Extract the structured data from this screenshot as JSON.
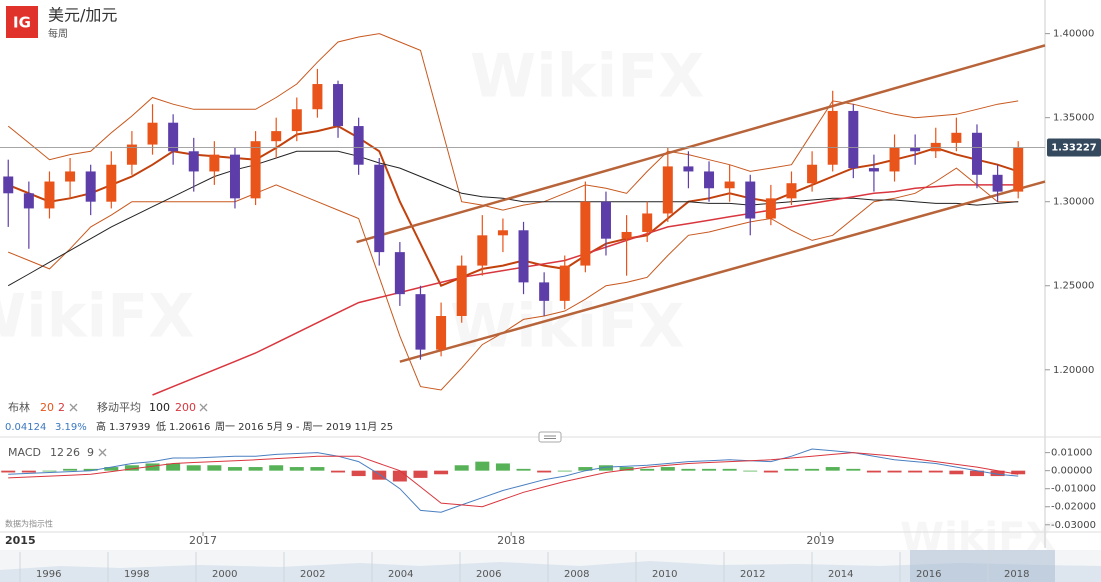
{
  "header": {
    "logo": "IG",
    "title": "美元/加元",
    "period": "每周"
  },
  "watermark": "WikiFX",
  "legend": {
    "bollinger": {
      "name": "布林",
      "period": 20,
      "stddev": 2
    },
    "moving_average": {
      "name": "移动平均",
      "fast": 100,
      "slow": 200
    },
    "stats": {
      "change": 0.04124,
      "change_pct": "3.19%",
      "high_label": "高",
      "high": 1.37939,
      "low_label": "低",
      "low": 1.20616,
      "range": "周一 2016 5月 9 - 周一 2019 11月 25"
    },
    "macd": {
      "name": "MACD",
      "fast": 12,
      "slow": 26,
      "signal": 9
    }
  },
  "note": "数据为指示性",
  "start_label": "2015",
  "navigator_years": [
    "1996",
    "1998",
    "2000",
    "2002",
    "2004",
    "2006",
    "2008",
    "2010",
    "2012",
    "2014",
    "2016",
    "2018"
  ],
  "chart_data": [
    {
      "type": "candlestick",
      "categories": [
        null,
        null,
        null,
        null,
        null,
        null,
        null,
        null,
        null,
        null,
        null,
        null,
        null,
        null,
        null,
        null,
        null,
        null,
        null,
        null,
        null,
        null,
        null,
        null,
        null,
        null,
        null,
        null,
        null,
        null,
        null,
        null,
        null,
        null,
        null,
        null,
        null,
        null,
        null,
        null,
        null,
        null,
        null,
        null,
        null,
        null,
        null,
        null,
        null,
        null
      ],
      "open": [
        1.315,
        1.305,
        1.296,
        1.312,
        1.318,
        1.3,
        1.322,
        1.334,
        1.347,
        1.33,
        1.318,
        1.328,
        1.302,
        1.336,
        1.342,
        1.355,
        1.37,
        1.345,
        1.322,
        1.27,
        1.245,
        1.212,
        1.232,
        1.262,
        1.28,
        1.283,
        1.252,
        1.241,
        1.262,
        1.3,
        1.278,
        1.282,
        1.293,
        1.321,
        1.318,
        1.308,
        1.312,
        1.29,
        1.302,
        1.311,
        1.322,
        1.354,
        1.32,
        1.318,
        1.332,
        1.33,
        1.335,
        1.341,
        1.316,
        1.306
      ],
      "high": [
        1.325,
        1.312,
        1.318,
        1.326,
        1.322,
        1.33,
        1.342,
        1.358,
        1.352,
        1.338,
        1.336,
        1.332,
        1.342,
        1.35,
        1.362,
        1.379,
        1.372,
        1.35,
        1.326,
        1.276,
        1.25,
        1.24,
        1.268,
        1.292,
        1.29,
        1.288,
        1.258,
        1.268,
        1.312,
        1.306,
        1.292,
        1.3,
        1.332,
        1.33,
        1.324,
        1.322,
        1.316,
        1.31,
        1.318,
        1.33,
        1.366,
        1.358,
        1.328,
        1.34,
        1.34,
        1.344,
        1.35,
        1.346,
        1.322,
        1.336
      ],
      "low": [
        1.285,
        1.272,
        1.29,
        1.302,
        1.292,
        1.296,
        1.316,
        1.328,
        1.322,
        1.306,
        1.31,
        1.296,
        1.298,
        1.326,
        1.336,
        1.35,
        1.338,
        1.316,
        1.262,
        1.238,
        1.206,
        1.208,
        1.228,
        1.256,
        1.27,
        1.245,
        1.232,
        1.236,
        1.258,
        1.268,
        1.256,
        1.276,
        1.288,
        1.308,
        1.3,
        1.3,
        1.28,
        1.286,
        1.298,
        1.306,
        1.318,
        1.314,
        1.306,
        1.312,
        1.322,
        1.326,
        1.33,
        1.308,
        1.3,
        1.302
      ],
      "close": [
        1.305,
        1.296,
        1.312,
        1.318,
        1.3,
        1.322,
        1.334,
        1.347,
        1.33,
        1.318,
        1.328,
        1.302,
        1.336,
        1.342,
        1.355,
        1.37,
        1.345,
        1.322,
        1.27,
        1.245,
        1.212,
        1.232,
        1.262,
        1.28,
        1.283,
        1.252,
        1.241,
        1.262,
        1.3,
        1.278,
        1.282,
        1.293,
        1.321,
        1.318,
        1.308,
        1.312,
        1.29,
        1.302,
        1.311,
        1.322,
        1.354,
        1.32,
        1.318,
        1.332,
        1.33,
        1.335,
        1.341,
        1.316,
        1.306,
        1.332
      ],
      "up_color": "#e8541a",
      "down_color": "#5d3ea8",
      "lines": [
        {
          "color": "#c8581e",
          "width": 1,
          "values": [
            1.345,
            1.335,
            1.325,
            1.328,
            1.33,
            1.341,
            1.351,
            1.362,
            1.358,
            1.355,
            1.355,
            1.355,
            1.355,
            1.362,
            1.37,
            1.383,
            1.395,
            1.398,
            1.4,
            1.395,
            1.39,
            1.345,
            1.3,
            1.298,
            1.295,
            1.298,
            1.3,
            1.305,
            1.31,
            1.308,
            1.305,
            1.318,
            1.33,
            1.328,
            1.325,
            1.322,
            1.318,
            1.32,
            1.322,
            1.341,
            1.36,
            1.358,
            1.355,
            1.352,
            1.35,
            1.351,
            1.352,
            1.355,
            1.358,
            1.36
          ]
        },
        {
          "color": "#c8581e",
          "width": 1,
          "values": [
            1.27,
            1.265,
            1.26,
            1.272,
            1.285,
            1.292,
            1.3,
            1.3,
            1.3,
            1.3,
            1.3,
            1.3,
            1.305,
            1.31,
            1.305,
            1.3,
            1.295,
            1.29,
            1.255,
            1.22,
            1.19,
            1.188,
            1.201,
            1.215,
            1.222,
            1.23,
            1.232,
            1.235,
            1.242,
            1.25,
            1.252,
            1.255,
            1.268,
            1.28,
            1.282,
            1.285,
            1.288,
            1.29,
            1.283,
            1.277,
            1.28,
            1.29,
            1.3,
            1.302,
            1.305,
            1.312,
            1.32,
            1.31,
            1.3,
            1.3
          ]
        },
        {
          "color": "#c2410c",
          "width": 2,
          "values": [
            1.31,
            1.305,
            1.3,
            1.302,
            1.305,
            1.31,
            1.315,
            1.322,
            1.33,
            1.328,
            1.327,
            1.326,
            1.325,
            1.332,
            1.34,
            1.342,
            1.345,
            1.338,
            1.33,
            1.3,
            1.275,
            1.25,
            1.255,
            1.26,
            1.262,
            1.265,
            1.262,
            1.26,
            1.268,
            1.275,
            1.278,
            1.28,
            1.29,
            1.3,
            1.302,
            1.305,
            1.302,
            1.3,
            1.305,
            1.31,
            1.315,
            1.32,
            1.322,
            1.325,
            1.328,
            1.332,
            1.328,
            1.325,
            1.322,
            1.318
          ]
        },
        {
          "color": "#222222",
          "width": 1,
          "values": [
            1.25,
            1.257,
            1.264,
            1.271,
            1.278,
            1.285,
            1.291,
            1.297,
            1.303,
            1.309,
            1.315,
            1.319,
            1.322,
            1.326,
            1.33,
            1.33,
            1.33,
            1.327,
            1.323,
            1.32,
            1.315,
            1.31,
            1.305,
            1.303,
            1.302,
            1.3,
            1.3,
            1.3,
            1.3,
            1.3,
            1.3,
            1.3,
            1.3,
            1.3,
            1.299,
            1.299,
            1.298,
            1.299,
            1.3,
            1.301,
            1.302,
            1.302,
            1.301,
            1.301,
            1.3,
            1.299,
            1.299,
            1.298,
            1.299,
            1.3
          ]
        },
        {
          "color": "#d9363e",
          "width": 1.5,
          "values": [
            null,
            null,
            null,
            null,
            null,
            null,
            null,
            1.185,
            1.19,
            1.195,
            1.2,
            1.205,
            1.21,
            1.216,
            1.222,
            1.228,
            1.234,
            1.24,
            1.243,
            1.246,
            1.249,
            1.252,
            1.255,
            1.257,
            1.259,
            1.261,
            1.263,
            1.265,
            1.269,
            1.273,
            1.277,
            1.281,
            1.285,
            1.287,
            1.289,
            1.291,
            1.293,
            1.295,
            1.297,
            1.299,
            1.301,
            1.303,
            1.305,
            1.306,
            1.308,
            1.309,
            1.31,
            1.31,
            1.31,
            1.31
          ]
        }
      ],
      "trendlines": [
        {
          "color": "#b8643a",
          "x": [
            16.9,
            50.3
          ],
          "values": [
            1.276,
            1.393
          ]
        },
        {
          "color": "#b8643a",
          "x": [
            19.0,
            50.3
          ],
          "values": [
            1.2048,
            1.312
          ]
        }
      ],
      "last_price": 1.33227,
      "xlim": [
        -0.4,
        50.3
      ],
      "xticks": [
        {
          "value": 9.45,
          "label": "2017"
        },
        {
          "value": 24.4,
          "label": "2018"
        },
        {
          "value": 39.4,
          "label": "2019"
        }
      ],
      "ylim": [
        1.185,
        1.42
      ],
      "yticks": [
        {
          "value": 1.2,
          "label": "1.20000"
        },
        {
          "value": 1.25,
          "label": "1.25000"
        },
        {
          "value": 1.3,
          "label": "1.30000"
        },
        {
          "value": 1.35,
          "label": "1.35000"
        },
        {
          "value": 1.4,
          "label": "1.40000"
        }
      ]
    },
    {
      "type": "macd",
      "values": [
        -0.001,
        -0.001,
        0.0,
        0.001,
        0.001,
        0.002,
        0.003,
        0.004,
        0.004,
        0.003,
        0.003,
        0.002,
        0.002,
        0.003,
        0.002,
        0.002,
        -0.001,
        -0.003,
        -0.005,
        -0.006,
        -0.004,
        -0.002,
        0.003,
        0.005,
        0.004,
        0.001,
        -0.001,
        0.0,
        0.002,
        0.003,
        0.002,
        0.001,
        0.002,
        0.001,
        0.001,
        0.001,
        0.0,
        -0.001,
        0.001,
        0.001,
        0.002,
        0.001,
        -0.001,
        -0.001,
        -0.001,
        -0.001,
        -0.002,
        -0.003,
        -0.003,
        -0.002
      ],
      "pos_color": "#3aa43a",
      "neg_color": "#d42a2a",
      "lines": [
        {
          "color": "#4a7fc1",
          "values": [
            -0.002,
            -0.0015,
            -0.001,
            -0.0005,
            0.0,
            0.002,
            0.004,
            0.005,
            0.007,
            0.007,
            0.0075,
            0.008,
            0.008,
            0.009,
            0.0095,
            0.01,
            0.008,
            0.005,
            -0.002,
            -0.01,
            -0.022,
            -0.023,
            -0.019,
            -0.015,
            -0.011,
            -0.008,
            -0.005,
            -0.003,
            0.0,
            0.002,
            0.0025,
            0.003,
            0.004,
            0.005,
            0.0055,
            0.006,
            0.0055,
            0.005,
            0.008,
            0.012,
            0.011,
            0.01,
            0.008,
            0.006,
            0.005,
            0.004,
            0.002,
            0.0,
            -0.002,
            -0.003
          ]
        },
        {
          "color": "#d9363e",
          "values": [
            -0.004,
            -0.0035,
            -0.003,
            -0.0025,
            -0.002,
            -0.0005,
            0.001,
            0.0025,
            0.004,
            0.0045,
            0.005,
            0.0055,
            0.006,
            0.0067,
            0.0073,
            0.008,
            0.008,
            0.008,
            0.004,
            0.0,
            -0.009,
            -0.018,
            -0.019,
            -0.02,
            -0.016,
            -0.012,
            -0.009,
            -0.006,
            -0.0035,
            -0.001,
            0.0005,
            0.002,
            0.003,
            0.004,
            0.0045,
            0.005,
            0.0055,
            0.006,
            0.007,
            0.008,
            0.009,
            0.01,
            0.009,
            0.008,
            0.0065,
            0.005,
            0.0035,
            0.002,
            0.0,
            -0.002
          ]
        }
      ],
      "ylim": [
        -0.034,
        0.017
      ],
      "yticks": [
        {
          "value": -0.03,
          "label": "-0.03000"
        },
        {
          "value": -0.02,
          "label": "-0.02000"
        },
        {
          "value": -0.01,
          "label": "-0.01000"
        },
        {
          "value": 0,
          "label": "0.00000"
        },
        {
          "value": 0.01,
          "label": "0.01000"
        }
      ]
    }
  ]
}
